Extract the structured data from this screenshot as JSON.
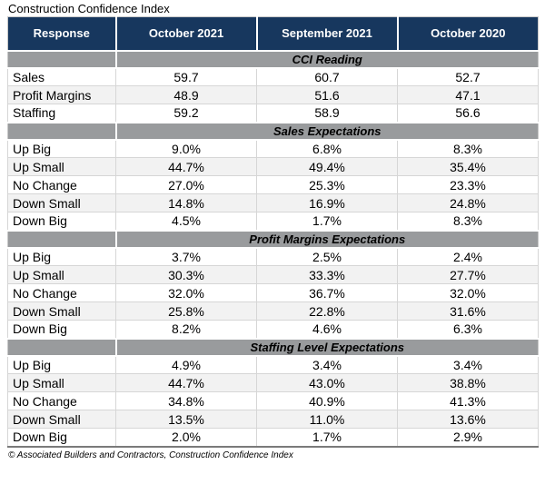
{
  "colors": {
    "header_bg": "#17375E",
    "header_text": "#FFFFFF",
    "band_bg": "#999B9D",
    "alt_row_bg": "#F2F2F2",
    "grid": "#D6D6D6",
    "bottom_border": "#7A7A7A"
  },
  "chart_data": {
    "type": "table",
    "title": "Construction Confidence Index",
    "columns": [
      "Response",
      "October 2021",
      "September 2021",
      "October 2020"
    ],
    "sections": [
      {
        "label": "CCI Reading",
        "rows": [
          {
            "label": "Sales",
            "values": [
              "59.7",
              "60.7",
              "52.7"
            ]
          },
          {
            "label": "Profit Margins",
            "values": [
              "48.9",
              "51.6",
              "47.1"
            ]
          },
          {
            "label": "Staffing",
            "values": [
              "59.2",
              "58.9",
              "56.6"
            ]
          }
        ]
      },
      {
        "label": "Sales Expectations",
        "rows": [
          {
            "label": "Up Big",
            "values": [
              "9.0%",
              "6.8%",
              "8.3%"
            ]
          },
          {
            "label": "Up Small",
            "values": [
              "44.7%",
              "49.4%",
              "35.4%"
            ]
          },
          {
            "label": "No Change",
            "values": [
              "27.0%",
              "25.3%",
              "23.3%"
            ]
          },
          {
            "label": "Down Small",
            "values": [
              "14.8%",
              "16.9%",
              "24.8%"
            ]
          },
          {
            "label": "Down Big",
            "values": [
              "4.5%",
              "1.7%",
              "8.3%"
            ]
          }
        ]
      },
      {
        "label": "Profit Margins Expectations",
        "rows": [
          {
            "label": "Up Big",
            "values": [
              "3.7%",
              "2.5%",
              "2.4%"
            ]
          },
          {
            "label": "Up Small",
            "values": [
              "30.3%",
              "33.3%",
              "27.7%"
            ]
          },
          {
            "label": "No Change",
            "values": [
              "32.0%",
              "36.7%",
              "32.0%"
            ]
          },
          {
            "label": "Down Small",
            "values": [
              "25.8%",
              "22.8%",
              "31.6%"
            ]
          },
          {
            "label": "Down Big",
            "values": [
              "8.2%",
              "4.6%",
              "6.3%"
            ]
          }
        ]
      },
      {
        "label": "Staffing Level Expectations",
        "rows": [
          {
            "label": "Up Big",
            "values": [
              "4.9%",
              "3.4%",
              "3.4%"
            ]
          },
          {
            "label": "Up Small",
            "values": [
              "44.7%",
              "43.0%",
              "38.8%"
            ]
          },
          {
            "label": "No Change",
            "values": [
              "34.8%",
              "40.9%",
              "41.3%"
            ]
          },
          {
            "label": "Down Small",
            "values": [
              "13.5%",
              "11.0%",
              "13.6%"
            ]
          },
          {
            "label": "Down Big",
            "values": [
              "2.0%",
              "1.7%",
              "2.9%"
            ]
          }
        ]
      }
    ],
    "source_note": "© Associated Builders and Contractors, Construction Confidence Index"
  }
}
